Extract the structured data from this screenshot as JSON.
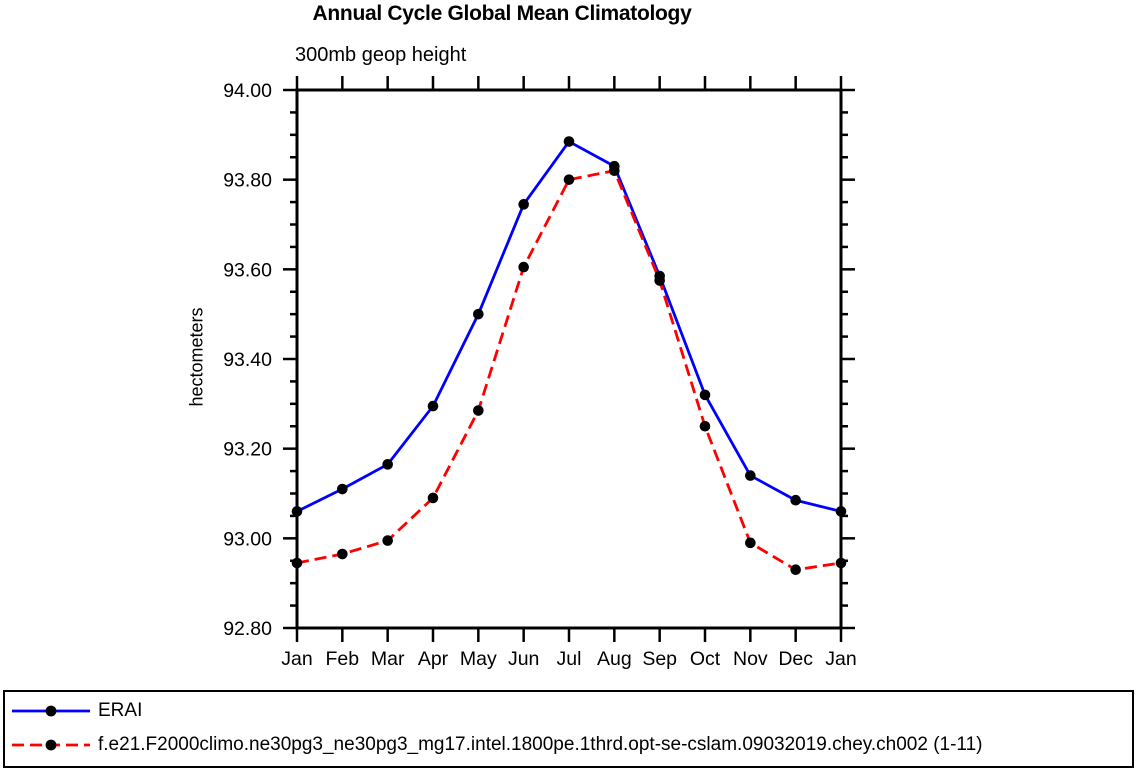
{
  "title": "Annual Cycle Global Mean Climatology",
  "subtitle": "300mb geop height",
  "y_axis": {
    "label": "hectometers",
    "tick_labels": [
      "94.00",
      "93.80",
      "93.60",
      "93.40",
      "93.20",
      "93.00",
      "92.80"
    ]
  },
  "x_axis": {
    "tick_labels": [
      "Jan",
      "Feb",
      "Mar",
      "Apr",
      "May",
      "Jun",
      "Jul",
      "Aug",
      "Sep",
      "Oct",
      "Nov",
      "Dec",
      "Jan"
    ]
  },
  "legend": [
    {
      "label": "ERAI",
      "color": "#0000ff",
      "line_style": "solid",
      "marker_color": "#000000"
    },
    {
      "label": "f.e21.F2000climo.ne30pg3_ne30pg3_mg17.intel.1800pe.1thrd.opt-se-cslam.09032019.chey.ch002 (1-11)",
      "color": "#ff0000",
      "line_style": "dashed",
      "marker_color": "#000000"
    }
  ],
  "chart_data": {
    "type": "line",
    "title": "Annual Cycle Global Mean Climatology",
    "subtitle": "300mb geop height",
    "xlabel": "",
    "ylabel": "hectometers",
    "categories": [
      "Jan",
      "Feb",
      "Mar",
      "Apr",
      "May",
      "Jun",
      "Jul",
      "Aug",
      "Sep",
      "Oct",
      "Nov",
      "Dec",
      "Jan"
    ],
    "ylim": [
      92.8,
      94.0
    ],
    "y_tick_step": 0.2,
    "y_minor_step": 0.05,
    "y_tick_labels": [
      "94.00",
      "93.80",
      "93.60",
      "93.40",
      "93.20",
      "93.00",
      "92.80"
    ],
    "grid": false,
    "legend_position": "bottom-left-box",
    "series": [
      {
        "name": "ERAI",
        "color": "#0000ff",
        "line_style": "solid",
        "marker": "filled-circle",
        "marker_color": "#000000",
        "values": [
          93.06,
          93.11,
          93.165,
          93.295,
          93.5,
          93.745,
          93.885,
          93.83,
          93.585,
          93.32,
          93.14,
          93.085,
          93.06
        ]
      },
      {
        "name": "f.e21.F2000climo.ne30pg3_ne30pg3_mg17.intel.1800pe.1thrd.opt-se-cslam.09032019.chey.ch002 (1-11)",
        "color": "#ff0000",
        "line_style": "dashed",
        "marker": "filled-circle",
        "marker_color": "#000000",
        "values": [
          92.945,
          92.965,
          92.995,
          93.09,
          93.285,
          93.605,
          93.8,
          93.82,
          93.575,
          93.25,
          92.99,
          92.93,
          92.945
        ]
      }
    ]
  }
}
